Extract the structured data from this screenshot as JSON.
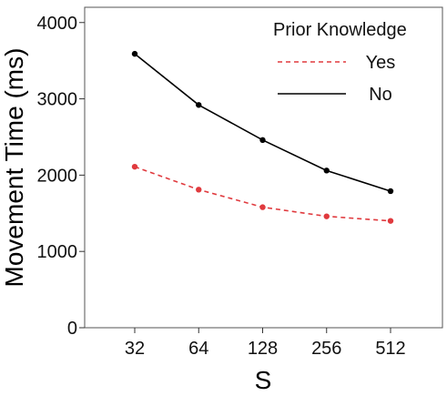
{
  "chart_data": {
    "type": "line",
    "title": "",
    "xlabel": "S",
    "ylabel": "Movement Time (ms)",
    "x_scale": "log2",
    "categories": [
      "32",
      "64",
      "128",
      "256",
      "512"
    ],
    "ylim": [
      0,
      4200
    ],
    "yticks": [
      0,
      1000,
      2000,
      3000,
      4000
    ],
    "grid": false,
    "legend": {
      "title": "Prior Knowledge",
      "position": "top-right"
    },
    "series": [
      {
        "name": "Yes",
        "color": "#e03a3e",
        "line_style": "dashed",
        "values": [
          2110,
          1810,
          1580,
          1460,
          1400
        ]
      },
      {
        "name": "No",
        "color": "#000000",
        "line_style": "solid",
        "values": [
          3590,
          2920,
          2460,
          2060,
          1790
        ]
      }
    ]
  }
}
